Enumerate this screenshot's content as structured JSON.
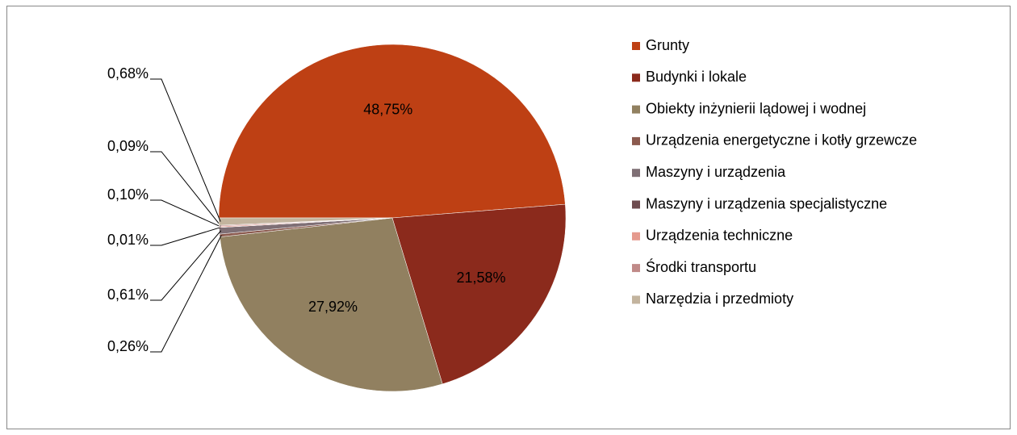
{
  "chart_data": {
    "type": "pie",
    "categories": [
      "Grunty",
      "Budynki i lokale",
      "Obiekty inżynierii lądowej i wodnej",
      "Urządzenia energetyczne i kotły grzewcze",
      "Maszyny i urządzenia",
      "Maszyny i urządzenia specjalistyczne",
      "Urządzenia techniczne",
      "Środki transportu",
      "Narzędzia i przedmioty"
    ],
    "values": [
      48.75,
      21.58,
      27.92,
      0.26,
      0.61,
      0.01,
      0.1,
      0.09,
      0.68
    ],
    "value_labels": [
      "48,75%",
      "21,58%",
      "27,92%",
      "0,26%",
      "0,61%",
      "0,01%",
      "0,10%",
      "0,09%",
      "0,68%"
    ],
    "colors": [
      "#be4014",
      "#8b2a1c",
      "#918060",
      "#8b5a4e",
      "#7f6f75",
      "#6e4c50",
      "#e59a8e",
      "#c08a88",
      "#c3b49e"
    ],
    "legend": "right"
  }
}
